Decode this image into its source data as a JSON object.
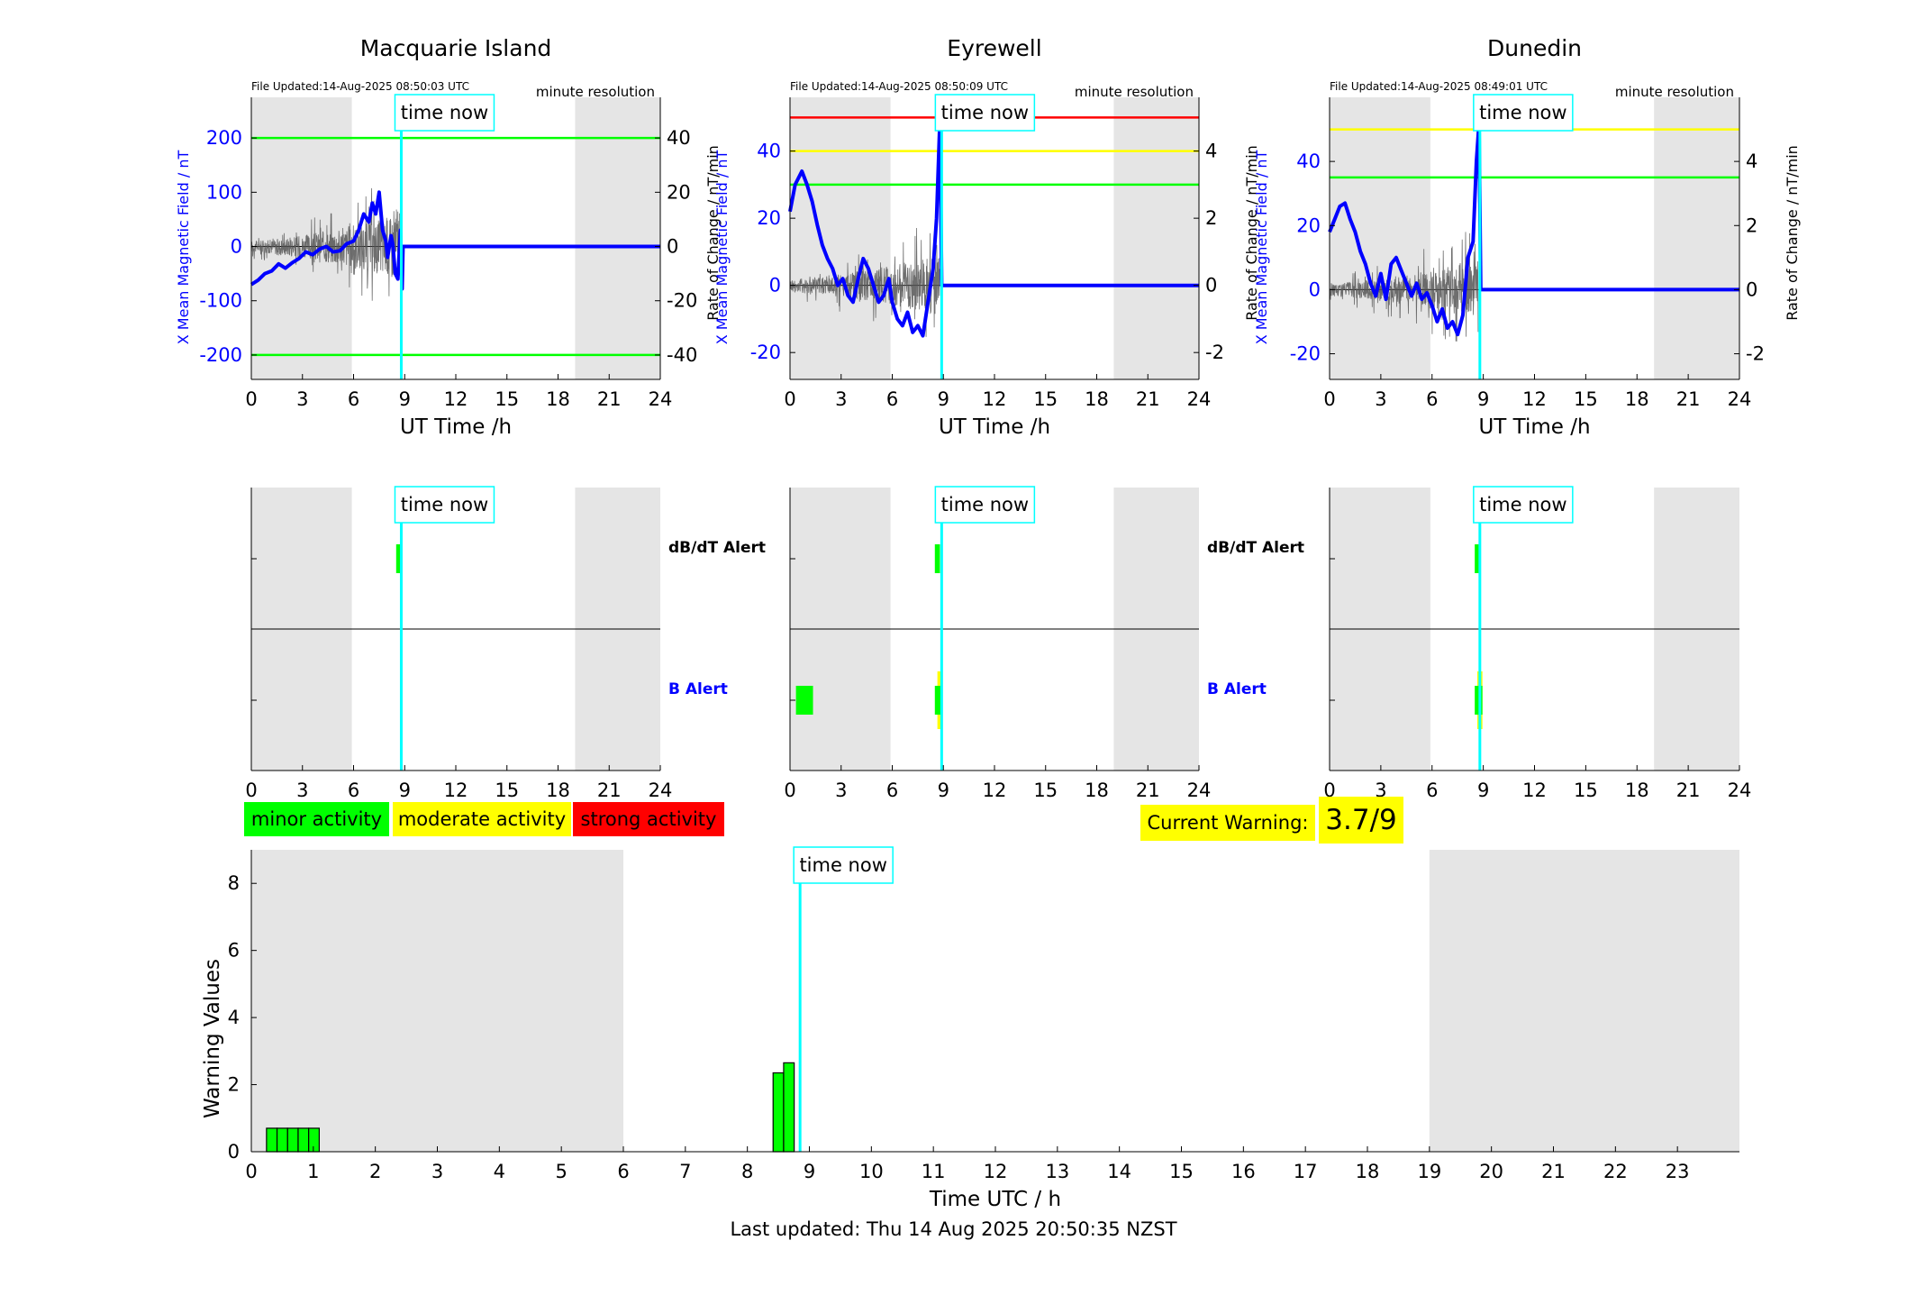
{
  "stations": [
    {
      "name": "Macquarie Island",
      "file_updated": "File Updated:14-Aug-2025 08:50:03 UTC",
      "resolution": "minute resolution",
      "ylabel_left": "X Mean Magnetic Field / nT",
      "ylabel_right": "Rate of Change / nT/min",
      "xlabel": "UT Time /h",
      "time_now_label": "time now",
      "chart_data": {
        "type": "line",
        "x_range": [
          0,
          24
        ],
        "x_ticks": [
          0,
          3,
          6,
          9,
          12,
          15,
          18,
          21,
          24
        ],
        "y_left_range": [
          -245,
          275
        ],
        "y_left_ticks": [
          -200,
          -100,
          0,
          100,
          200
        ],
        "y_right_range": [
          -49,
          55
        ],
        "y_right_ticks": [
          -40,
          -20,
          0,
          20,
          40
        ],
        "night_shading": [
          [
            0,
            5.9
          ],
          [
            19.0,
            24
          ]
        ],
        "time_now": 8.8,
        "threshold_lines": [
          {
            "color": "#00ff00",
            "y": 200
          },
          {
            "color": "#00ff00",
            "y": -200
          }
        ],
        "series": [
          {
            "color": "#0000ff",
            "points": [
              [
                0,
                -70
              ],
              [
                0.4,
                -62
              ],
              [
                0.8,
                -50
              ],
              [
                1.2,
                -45
              ],
              [
                1.6,
                -32
              ],
              [
                2.0,
                -40
              ],
              [
                2.4,
                -30
              ],
              [
                2.8,
                -22
              ],
              [
                3.2,
                -10
              ],
              [
                3.6,
                -15
              ],
              [
                4.0,
                -5
              ],
              [
                4.4,
                0
              ],
              [
                4.8,
                -10
              ],
              [
                5.2,
                -8
              ],
              [
                5.6,
                5
              ],
              [
                6.0,
                10
              ],
              [
                6.3,
                30
              ],
              [
                6.6,
                60
              ],
              [
                6.9,
                45
              ],
              [
                7.1,
                80
              ],
              [
                7.3,
                60
              ],
              [
                7.5,
                100
              ],
              [
                7.7,
                30
              ],
              [
                7.9,
                10
              ],
              [
                8.0,
                -20
              ],
              [
                8.2,
                20
              ],
              [
                8.3,
                5
              ],
              [
                8.45,
                -50
              ],
              [
                8.6,
                -60
              ],
              [
                8.75,
                30
              ],
              [
                8.85,
                -78
              ],
              [
                8.9,
                0
              ],
              [
                24,
                0
              ]
            ]
          },
          {
            "color": "#555555",
            "axis": "right",
            "noisy": true,
            "x_range": [
              0.0,
              8.7
            ],
            "amp_range": [
              3,
              18
            ]
          }
        ]
      }
    },
    {
      "name": "Eyrewell",
      "file_updated": "File Updated:14-Aug-2025 08:50:09 UTC",
      "resolution": "minute resolution",
      "ylabel_left": "X Mean Magnetic Field / nT",
      "ylabel_right": "Rate of Change / nT/min",
      "xlabel": "UT Time /h",
      "time_now_label": "time now",
      "chart_data": {
        "type": "line",
        "x_range": [
          0,
          24
        ],
        "x_ticks": [
          0,
          3,
          6,
          9,
          12,
          15,
          18,
          21,
          24
        ],
        "y_left_range": [
          -28,
          56
        ],
        "y_left_ticks": [
          -20,
          0,
          20,
          40
        ],
        "y_right_range": [
          -2.8,
          5.6
        ],
        "y_right_ticks": [
          -2,
          0,
          2,
          4
        ],
        "night_shading": [
          [
            0,
            5.9
          ],
          [
            19.0,
            24
          ]
        ],
        "time_now": 8.9,
        "threshold_lines": [
          {
            "color": "#ff0000",
            "y": 50
          },
          {
            "color": "#ffff00",
            "y": 40
          },
          {
            "color": "#00ff00",
            "y": 30
          }
        ],
        "series": [
          {
            "color": "#0000ff",
            "points": [
              [
                0,
                22
              ],
              [
                0.3,
                30
              ],
              [
                0.7,
                34
              ],
              [
                1.0,
                30
              ],
              [
                1.3,
                25
              ],
              [
                1.6,
                18
              ],
              [
                1.9,
                12
              ],
              [
                2.2,
                8
              ],
              [
                2.5,
                5
              ],
              [
                2.8,
                0
              ],
              [
                3.1,
                2
              ],
              [
                3.4,
                -3
              ],
              [
                3.7,
                -5
              ],
              [
                4.0,
                2
              ],
              [
                4.3,
                8
              ],
              [
                4.6,
                5
              ],
              [
                4.9,
                0
              ],
              [
                5.2,
                -5
              ],
              [
                5.5,
                -3
              ],
              [
                5.8,
                2
              ],
              [
                6.0,
                -5
              ],
              [
                6.3,
                -10
              ],
              [
                6.6,
                -12
              ],
              [
                6.9,
                -8
              ],
              [
                7.2,
                -14
              ],
              [
                7.5,
                -12
              ],
              [
                7.8,
                -15
              ],
              [
                8.1,
                -5
              ],
              [
                8.4,
                5
              ],
              [
                8.6,
                20
              ],
              [
                8.8,
                50
              ],
              [
                8.9,
                0
              ],
              [
                24,
                0
              ]
            ]
          },
          {
            "color": "#555555",
            "axis": "right",
            "noisy": true,
            "x_range": [
              0.0,
              8.8
            ],
            "amp_range": [
              0.3,
              1.3
            ]
          }
        ]
      }
    },
    {
      "name": "Dunedin",
      "file_updated": "File Updated:14-Aug-2025 08:49:01 UTC",
      "resolution": "minute resolution",
      "ylabel_left": "X Mean Magnetic Field / nT",
      "ylabel_right": "Rate of Change / nT/min",
      "xlabel": "UT Time /h",
      "time_now_label": "time now",
      "chart_data": {
        "type": "line",
        "x_range": [
          0,
          24
        ],
        "x_ticks": [
          0,
          3,
          6,
          9,
          12,
          15,
          18,
          21,
          24
        ],
        "y_left_range": [
          -28,
          60
        ],
        "y_left_ticks": [
          -20,
          0,
          20,
          40
        ],
        "y_right_range": [
          -2.8,
          6.0
        ],
        "y_right_ticks": [
          -2,
          0,
          2,
          4
        ],
        "night_shading": [
          [
            0,
            5.9
          ],
          [
            19.0,
            24
          ]
        ],
        "time_now": 8.8,
        "threshold_lines": [
          {
            "color": "#ffff00",
            "y": 50
          },
          {
            "color": "#00ff00",
            "y": 35
          }
        ],
        "series": [
          {
            "color": "#0000ff",
            "points": [
              [
                0,
                18
              ],
              [
                0.3,
                22
              ],
              [
                0.6,
                26
              ],
              [
                0.9,
                27
              ],
              [
                1.2,
                22
              ],
              [
                1.5,
                18
              ],
              [
                1.8,
                12
              ],
              [
                2.1,
                8
              ],
              [
                2.4,
                2
              ],
              [
                2.7,
                -2
              ],
              [
                3.0,
                5
              ],
              [
                3.3,
                -3
              ],
              [
                3.6,
                8
              ],
              [
                3.9,
                10
              ],
              [
                4.2,
                6
              ],
              [
                4.5,
                2
              ],
              [
                4.8,
                -2
              ],
              [
                5.1,
                2
              ],
              [
                5.4,
                -3
              ],
              [
                5.7,
                -1
              ],
              [
                6.0,
                -5
              ],
              [
                6.3,
                -10
              ],
              [
                6.6,
                -6
              ],
              [
                6.9,
                -12
              ],
              [
                7.2,
                -10
              ],
              [
                7.5,
                -14
              ],
              [
                7.8,
                -8
              ],
              [
                8.1,
                10
              ],
              [
                8.4,
                15
              ],
              [
                8.6,
                40
              ],
              [
                8.75,
                52
              ],
              [
                8.85,
                0
              ],
              [
                24,
                0
              ]
            ]
          },
          {
            "color": "#555555",
            "axis": "right",
            "noisy": true,
            "x_range": [
              0.0,
              8.7
            ],
            "amp_range": [
              0.3,
              1.3
            ]
          }
        ]
      }
    }
  ],
  "alerts": {
    "dbdt_label": "dB/dT Alert",
    "b_label": "B Alert",
    "time_now_label": "time now",
    "x_ticks": [
      0,
      3,
      6,
      9,
      12,
      15,
      18,
      21,
      24
    ],
    "panels": [
      {
        "time_now": 8.8,
        "night_shading": [
          [
            0,
            5.9
          ],
          [
            19.0,
            24
          ]
        ],
        "dbdt_marks": [
          {
            "x0": 8.5,
            "x1": 8.8,
            "color": "#00ff00"
          }
        ],
        "b_marks": []
      },
      {
        "time_now": 8.9,
        "night_shading": [
          [
            0,
            5.9
          ],
          [
            19.0,
            24
          ]
        ],
        "dbdt_marks": [
          {
            "x0": 8.5,
            "x1": 8.8,
            "color": "#00ff00"
          }
        ],
        "b_marks": [
          {
            "x0": 0.35,
            "x1": 1.35,
            "color": "#00ff00"
          },
          {
            "x0": 8.65,
            "x1": 8.95,
            "color": "#ffff00",
            "tall": true
          },
          {
            "x0": 8.5,
            "x1": 8.95,
            "color": "#00ff00"
          }
        ]
      },
      {
        "time_now": 8.8,
        "night_shading": [
          [
            0,
            5.9
          ],
          [
            19.0,
            24
          ]
        ],
        "dbdt_marks": [
          {
            "x0": 8.5,
            "x1": 8.8,
            "color": "#00ff00"
          }
        ],
        "b_marks": [
          {
            "x0": 8.65,
            "x1": 8.95,
            "color": "#ffff00",
            "tall": true
          },
          {
            "x0": 8.5,
            "x1": 8.95,
            "color": "#00ff00"
          }
        ]
      }
    ]
  },
  "legend": [
    {
      "label": "minor activity",
      "color": "#00ff00"
    },
    {
      "label": "moderate activity",
      "color": "#ffff00"
    },
    {
      "label": "strong activity",
      "color": "#ff0000"
    }
  ],
  "current_warning": {
    "label": "Current Warning:",
    "value": "3.7/9",
    "color": "#ffff00"
  },
  "warning_chart": {
    "chart_data": {
      "type": "bar",
      "xlabel": "Time UTC / h",
      "ylabel": "Warning Values",
      "x_range": [
        0,
        24
      ],
      "x_ticks": [
        0,
        1,
        2,
        3,
        4,
        5,
        6,
        7,
        8,
        9,
        10,
        11,
        12,
        13,
        14,
        15,
        16,
        17,
        18,
        19,
        20,
        21,
        22,
        23
      ],
      "y_range": [
        0,
        9
      ],
      "y_ticks": [
        0,
        2,
        4,
        6,
        8
      ],
      "night_shading": [
        [
          0,
          6.0
        ],
        [
          19.0,
          24
        ]
      ],
      "time_now": 8.85,
      "time_now_label": "time now",
      "bar_width": 0.17,
      "bars": [
        {
          "x": 0.33,
          "value": 0.7,
          "color": "#00ff00"
        },
        {
          "x": 0.5,
          "value": 0.7,
          "color": "#00ff00"
        },
        {
          "x": 0.67,
          "value": 0.7,
          "color": "#00ff00"
        },
        {
          "x": 0.84,
          "value": 0.7,
          "color": "#00ff00"
        },
        {
          "x": 1.01,
          "value": 0.7,
          "color": "#00ff00"
        },
        {
          "x": 8.5,
          "value": 2.35,
          "color": "#00ff00"
        },
        {
          "x": 8.67,
          "value": 2.65,
          "color": "#00ff00"
        }
      ]
    }
  },
  "footer": "Last updated: Thu 14 Aug 2025 20:50:35 NZST"
}
